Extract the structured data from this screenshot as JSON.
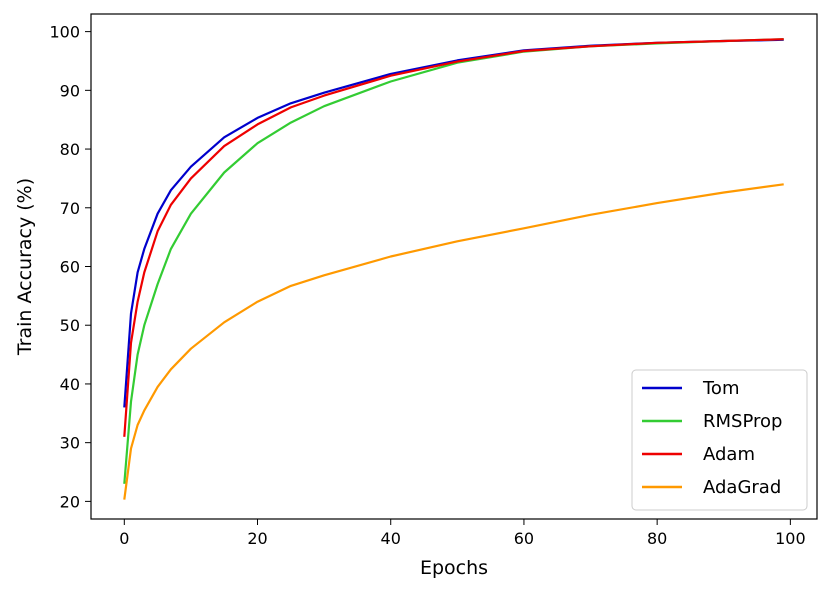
{
  "chart_data": {
    "type": "line",
    "xlabel": "Epochs",
    "ylabel": "Train Accuracy (%)",
    "xlim": [
      -5,
      104
    ],
    "ylim": [
      17,
      103
    ],
    "xticks": [
      0,
      20,
      40,
      60,
      80,
      100
    ],
    "yticks": [
      20,
      30,
      40,
      50,
      60,
      70,
      80,
      90,
      100
    ],
    "grid": false,
    "legend_position": "bottom-right",
    "x": [
      0,
      1,
      2,
      3,
      5,
      7,
      10,
      15,
      20,
      25,
      30,
      40,
      50,
      60,
      70,
      80,
      90,
      99
    ],
    "series": [
      {
        "name": "Tom",
        "color": "#0000cc",
        "values": [
          36,
          52,
          59,
          63,
          69,
          73,
          77,
          82,
          85.3,
          87.8,
          89.6,
          92.8,
          95.1,
          96.8,
          97.6,
          98.1,
          98.4,
          98.6
        ]
      },
      {
        "name": "RMSProp",
        "color": "#33cc33",
        "values": [
          23,
          37,
          45,
          50,
          57,
          63,
          69,
          76,
          81,
          84.5,
          87.3,
          91.5,
          94.7,
          96.6,
          97.5,
          98.0,
          98.4,
          98.7
        ]
      },
      {
        "name": "Adam",
        "color": "#ee0000",
        "values": [
          31,
          47,
          54,
          59,
          66,
          70.5,
          75,
          80.5,
          84.2,
          87.1,
          89.1,
          92.5,
          94.9,
          96.7,
          97.5,
          98.1,
          98.4,
          98.7
        ]
      },
      {
        "name": "AdaGrad",
        "color": "#ff9900",
        "values": [
          20.3,
          29,
          33,
          35.5,
          39.5,
          42.5,
          46,
          50.5,
          54,
          56.7,
          58.5,
          61.7,
          64.3,
          66.5,
          68.8,
          70.8,
          72.6,
          74
        ]
      }
    ]
  }
}
